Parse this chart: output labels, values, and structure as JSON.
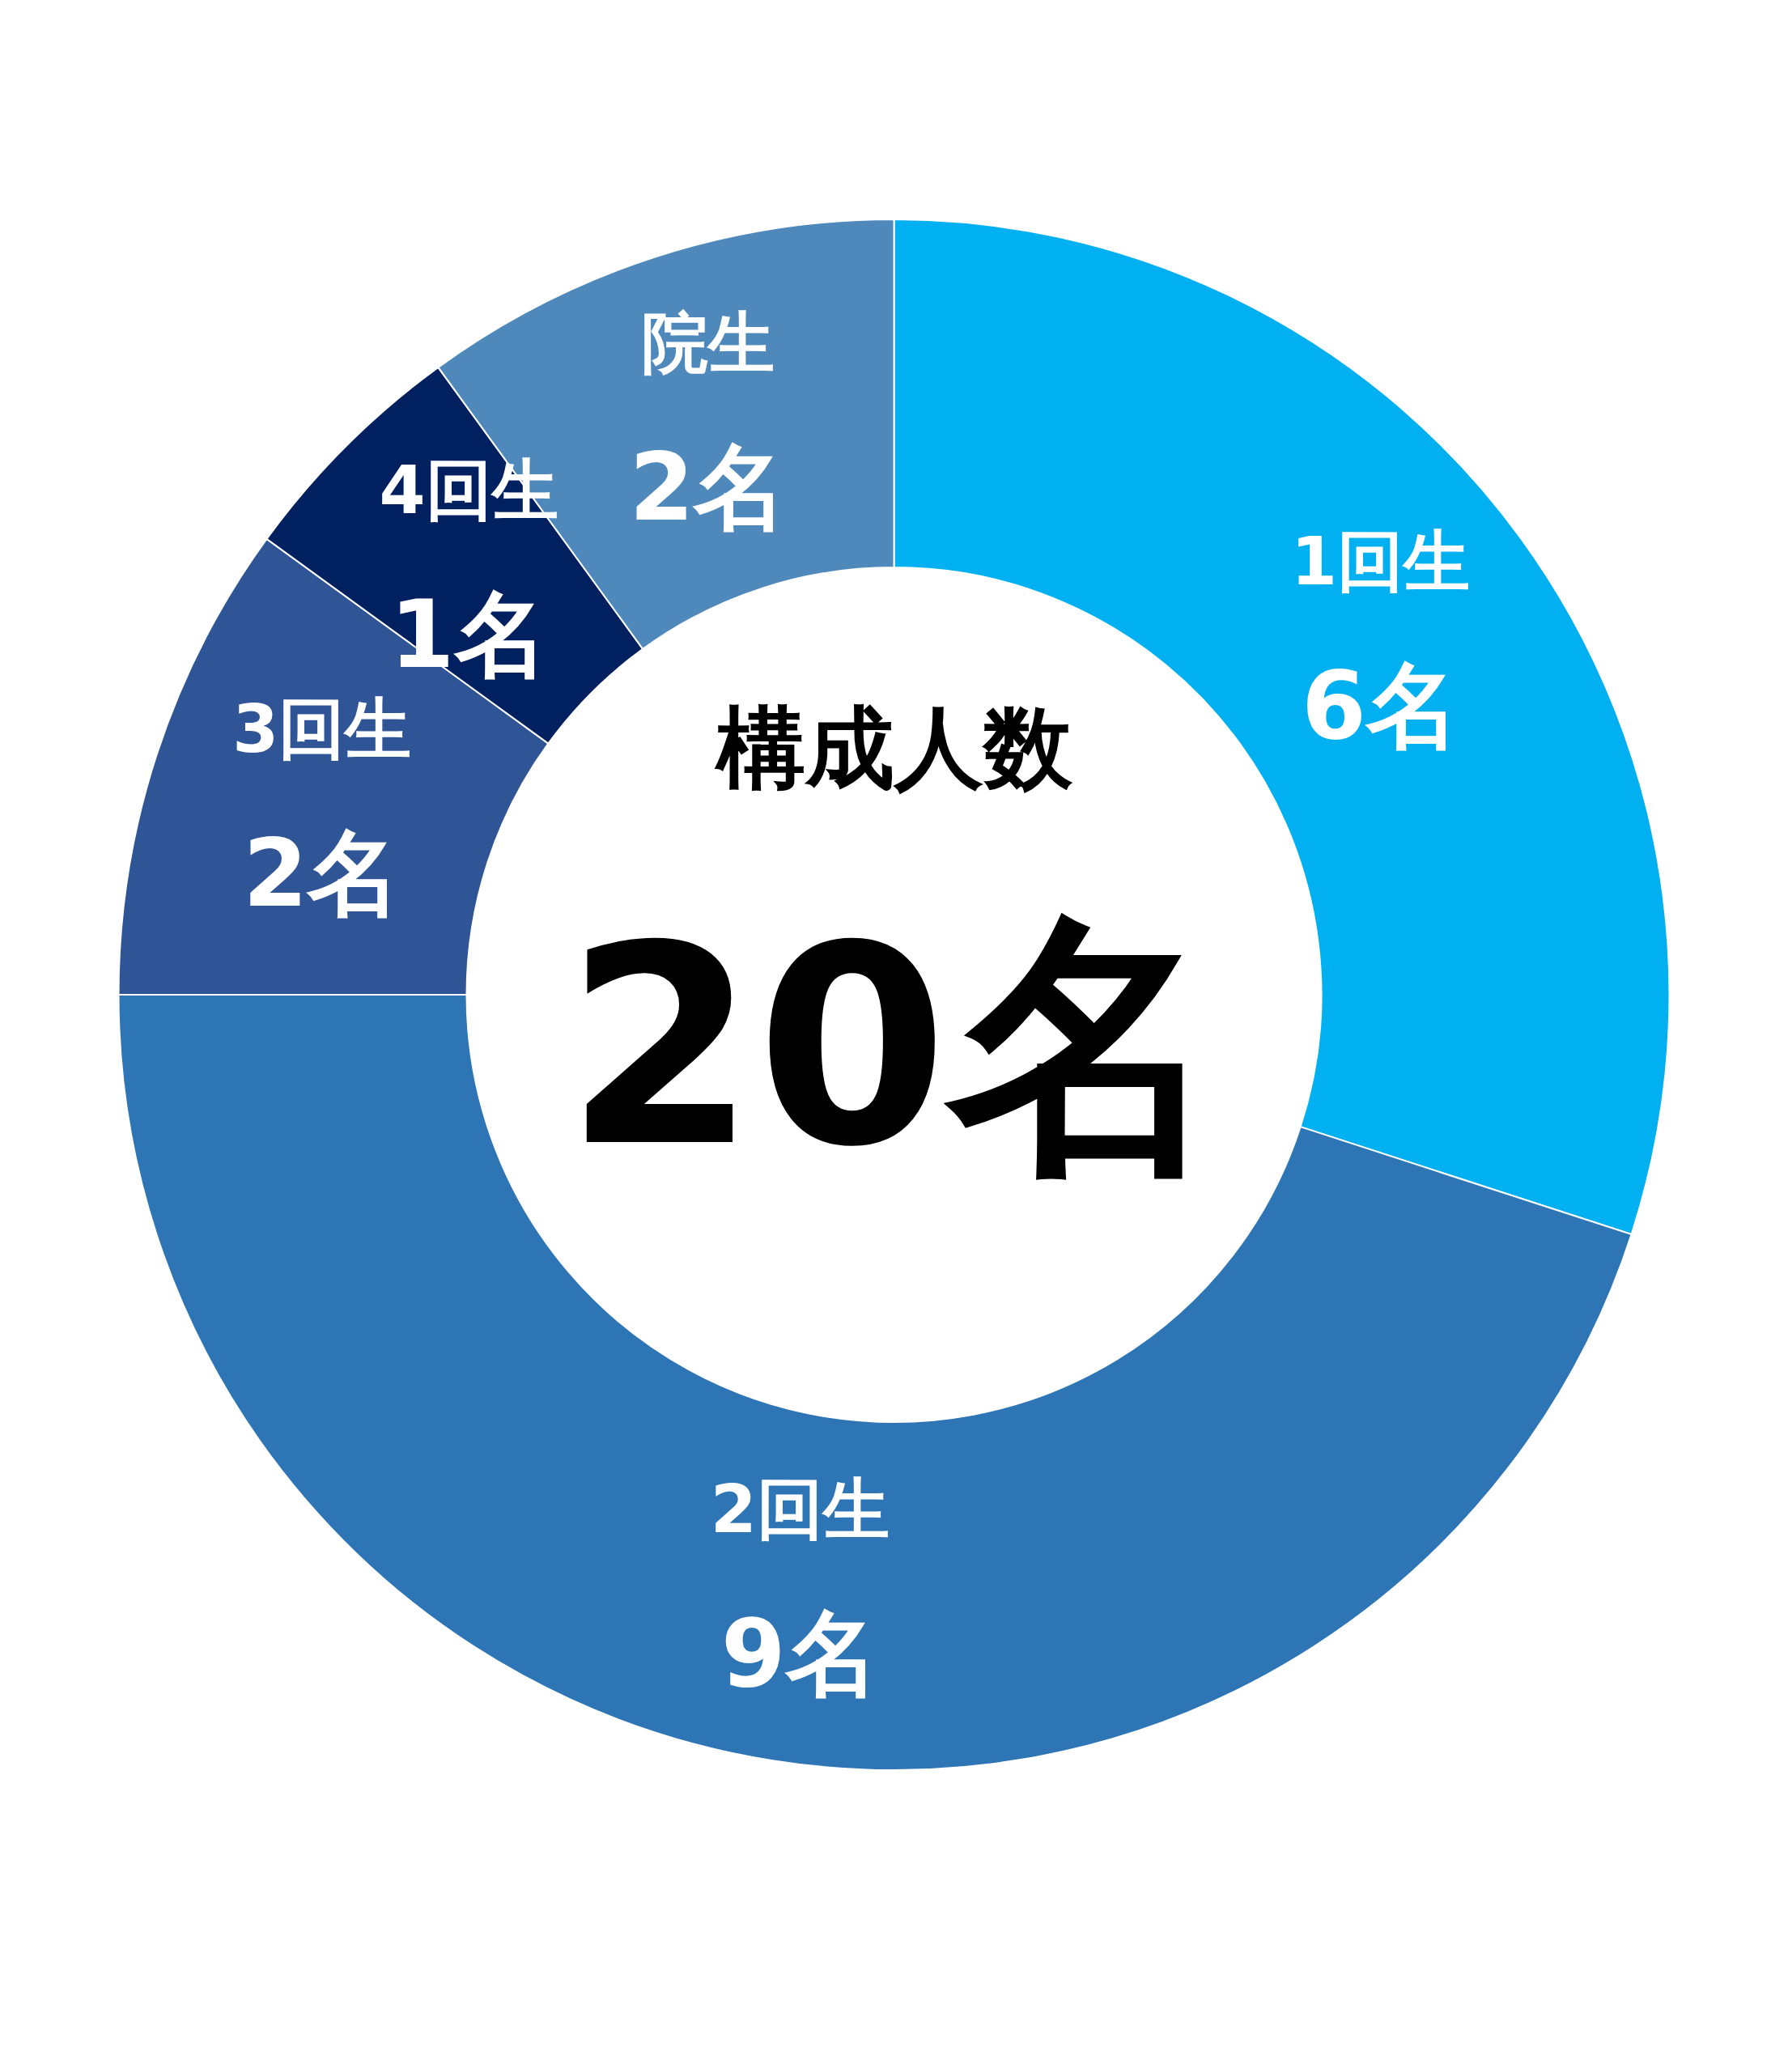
{
  "chart_data": {
    "type": "donut",
    "categories": [
      "1回生",
      "2回生",
      "3回生",
      "4回生",
      "院生"
    ],
    "values": [
      6,
      9,
      2,
      1,
      2
    ],
    "colors": [
      "#00b0f0",
      "#2e75b6",
      "#2f5597",
      "#002060",
      "#4f89bc"
    ],
    "value_labels": [
      "6名",
      "9名",
      "2名",
      "1名",
      "2名"
    ],
    "annotations": [
      "構成人数",
      "20名"
    ]
  }
}
